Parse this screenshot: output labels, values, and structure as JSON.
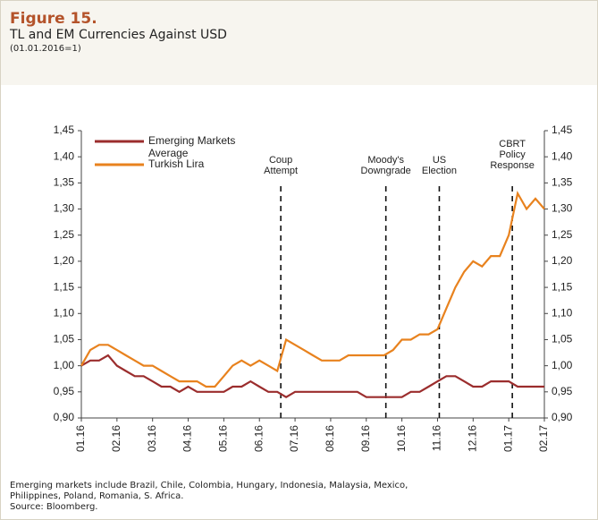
{
  "header": {
    "figure": "Figure 15.",
    "title": "TL and EM Currencies Against USD",
    "subtitle": "(01.01.2016=1)"
  },
  "chart_data": {
    "type": "line",
    "x": [
      0,
      0.25,
      0.5,
      0.75,
      1,
      1.25,
      1.5,
      1.75,
      2,
      2.25,
      2.5,
      2.75,
      3,
      3.25,
      3.5,
      3.75,
      4,
      4.25,
      4.5,
      4.75,
      5,
      5.25,
      5.5,
      5.75,
      6,
      6.25,
      6.5,
      6.75,
      7,
      7.25,
      7.5,
      7.75,
      8,
      8.25,
      8.5,
      8.75,
      9,
      9.25,
      9.5,
      9.75,
      10,
      10.25,
      10.5,
      10.75,
      11,
      11.25,
      11.5,
      11.75,
      12,
      12.25,
      12.5,
      12.75,
      13
    ],
    "series": [
      {
        "name": "Emerging Markets Average",
        "color": "#9b2d2d",
        "values": [
          1.0,
          1.01,
          1.01,
          1.02,
          1.0,
          0.99,
          0.98,
          0.98,
          0.97,
          0.96,
          0.96,
          0.95,
          0.96,
          0.95,
          0.95,
          0.95,
          0.95,
          0.96,
          0.96,
          0.97,
          0.96,
          0.95,
          0.95,
          0.94,
          0.95,
          0.95,
          0.95,
          0.95,
          0.95,
          0.95,
          0.95,
          0.95,
          0.94,
          0.94,
          0.94,
          0.94,
          0.94,
          0.95,
          0.95,
          0.96,
          0.97,
          0.98,
          0.98,
          0.97,
          0.96,
          0.96,
          0.97,
          0.97,
          0.97,
          0.96,
          0.96,
          0.96,
          0.96
        ]
      },
      {
        "name": "Turkish Lira",
        "color": "#e8821e",
        "values": [
          1.0,
          1.03,
          1.04,
          1.04,
          1.03,
          1.02,
          1.01,
          1.0,
          1.0,
          0.99,
          0.98,
          0.97,
          0.97,
          0.97,
          0.96,
          0.96,
          0.98,
          1.0,
          1.01,
          1.0,
          1.01,
          1.0,
          0.99,
          1.05,
          1.04,
          1.03,
          1.02,
          1.01,
          1.01,
          1.01,
          1.02,
          1.02,
          1.02,
          1.02,
          1.02,
          1.03,
          1.05,
          1.05,
          1.06,
          1.06,
          1.07,
          1.11,
          1.15,
          1.18,
          1.2,
          1.19,
          1.21,
          1.21,
          1.25,
          1.33,
          1.3,
          1.32,
          1.3
        ]
      }
    ],
    "xlim": [
      0,
      13
    ],
    "xticks": [
      {
        "value": 0,
        "label": "01.16"
      },
      {
        "value": 1,
        "label": "02.16"
      },
      {
        "value": 2,
        "label": "03.16"
      },
      {
        "value": 3,
        "label": "04.16"
      },
      {
        "value": 4,
        "label": "05.16"
      },
      {
        "value": 5,
        "label": "06.16"
      },
      {
        "value": 6,
        "label": "07.16"
      },
      {
        "value": 7,
        "label": "08.16"
      },
      {
        "value": 8,
        "label": "09.16"
      },
      {
        "value": 9,
        "label": "10.16"
      },
      {
        "value": 10,
        "label": "11.16"
      },
      {
        "value": 11,
        "label": "12.16"
      },
      {
        "value": 12,
        "label": "01.17"
      },
      {
        "value": 13,
        "label": "02.17"
      }
    ],
    "ylim": [
      0.9,
      1.45
    ],
    "yticks": [
      {
        "value": 0.9,
        "label": "0,90"
      },
      {
        "value": 0.95,
        "label": "0,95"
      },
      {
        "value": 1.0,
        "label": "1,00"
      },
      {
        "value": 1.05,
        "label": "1,05"
      },
      {
        "value": 1.1,
        "label": "1,10"
      },
      {
        "value": 1.15,
        "label": "1,15"
      },
      {
        "value": 1.2,
        "label": "1,20"
      },
      {
        "value": 1.25,
        "label": "1,25"
      },
      {
        "value": 1.3,
        "label": "1,30"
      },
      {
        "value": 1.35,
        "label": "1,35"
      },
      {
        "value": 1.4,
        "label": "1,40"
      },
      {
        "value": 1.45,
        "label": "1,45"
      }
    ],
    "y2lim": [
      0.9,
      1.45
    ],
    "y2ticks": [
      {
        "value": 0.9,
        "label": "0,90"
      },
      {
        "value": 0.95,
        "label": "0,95"
      },
      {
        "value": 1.0,
        "label": "1,00"
      },
      {
        "value": 1.05,
        "label": "1,05"
      },
      {
        "value": 1.1,
        "label": "1,10"
      },
      {
        "value": 1.15,
        "label": "1,15"
      },
      {
        "value": 1.2,
        "label": "1,20"
      },
      {
        "value": 1.25,
        "label": "1,25"
      },
      {
        "value": 1.3,
        "label": "1,30"
      },
      {
        "value": 1.35,
        "label": "1,35"
      },
      {
        "value": 1.4,
        "label": "1,40"
      },
      {
        "value": 1.45,
        "label": "1,45"
      }
    ],
    "legend": "upper left",
    "annotations": [
      {
        "lines": [
          "Coup",
          "Attempt"
        ],
        "x": 5.6
      },
      {
        "lines": [
          "Moody's",
          "Downgrade"
        ],
        "x": 8.55
      },
      {
        "lines": [
          "US",
          "Election"
        ],
        "x": 10.05
      },
      {
        "lines": [
          "CBRT",
          "Policy",
          "Response"
        ],
        "x": 12.1
      }
    ]
  },
  "notes": [
    "Emerging markets include Brazil, Chile, Colombia, Hungary, Indonesia, Malaysia, Mexico,",
    "Philippines, Poland, Romania, S. Africa."
  ],
  "source": "Source: Bloomberg."
}
